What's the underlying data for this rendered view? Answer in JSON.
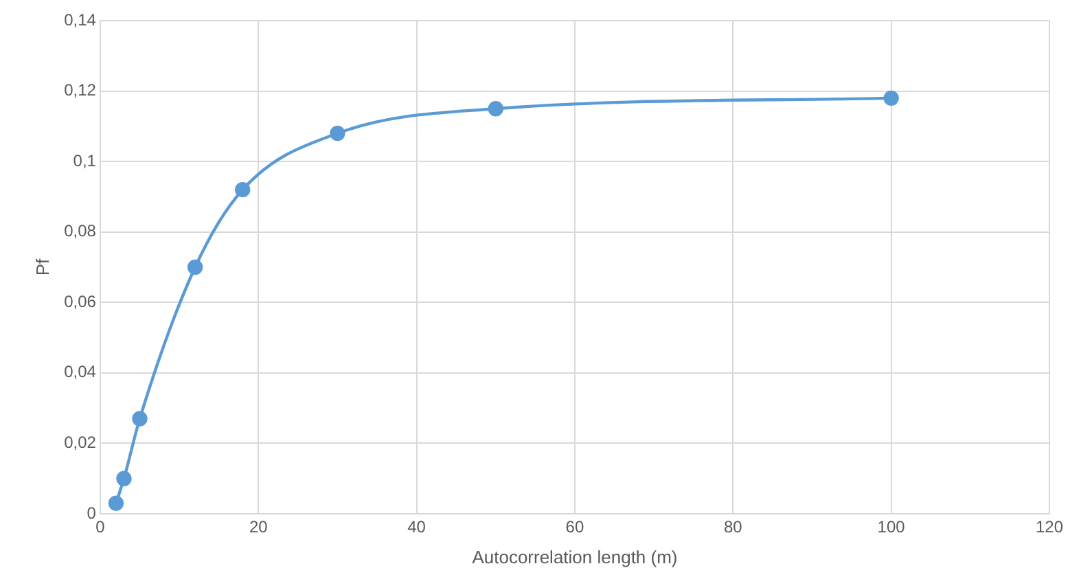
{
  "chart_data": {
    "type": "line",
    "xlabel": "Autocorrelation length (m)",
    "ylabel": "Pf",
    "x": [
      2,
      3,
      5,
      12,
      18,
      30,
      50,
      100
    ],
    "series": [
      {
        "color": "#5b9bd5",
        "values": [
          0.003,
          0.01,
          0.027,
          0.07,
          0.092,
          0.108,
          0.115,
          0.118
        ]
      }
    ],
    "xlim": [
      0,
      120
    ],
    "xticks": [
      0,
      20,
      40,
      60,
      80,
      100,
      120
    ],
    "ylim": [
      0,
      0.14
    ],
    "yticks": [
      {
        "value": 0,
        "label": "0"
      },
      {
        "value": 0.02,
        "label": "0,02"
      },
      {
        "value": 0.04,
        "label": "0,04"
      },
      {
        "value": 0.06,
        "label": "0,06"
      },
      {
        "value": 0.08,
        "label": "0,08"
      },
      {
        "value": 0.1,
        "label": "0,1"
      },
      {
        "value": 0.12,
        "label": "0,12"
      },
      {
        "value": 0.14,
        "label": "0,14"
      }
    ],
    "grid": true,
    "marker": "circle",
    "line_style": "solid",
    "legend": false
  }
}
